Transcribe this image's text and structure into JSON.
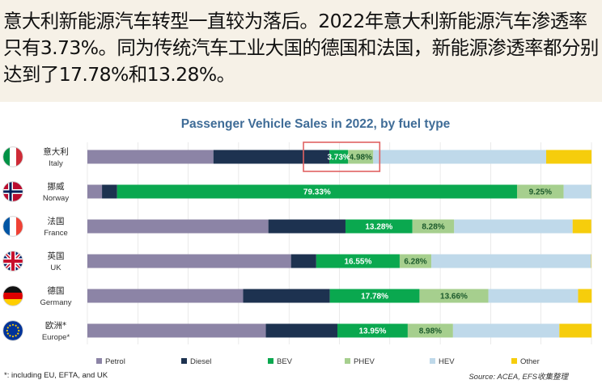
{
  "header": {
    "text": "意大利新能源汽车转型一直较为落后。2022年意大利新能源汽车渗透率只有3.73%。同为传统汽车工业大国的德国和法国，新能源渗透率都分别达到了17.78%和13.28%。"
  },
  "colors": {
    "Petrol": "#8c84a6",
    "Diesel": "#1d3250",
    "BEV": "#0aa84f",
    "PHEV": "#a6cf8e",
    "HEV": "#bfd9ea",
    "Other": "#f6cd0c",
    "highlight_box": "#e06262",
    "gridline": "#dddddd"
  },
  "chart_data": {
    "type": "bar",
    "orientation": "horizontal",
    "stacked": true,
    "title": "Passenger Vehicle Sales in 2022, by fuel type",
    "xlim": [
      0,
      100
    ],
    "unit": "%",
    "legend_position": "bottom",
    "segment_order": [
      "Petrol",
      "Diesel",
      "BEV",
      "PHEV",
      "HEV",
      "Other"
    ],
    "categories": [
      {
        "cn": "意大利",
        "en": "Italy",
        "flag": "italy-flag-icon"
      },
      {
        "cn": "挪威",
        "en": "Norway",
        "flag": "norway-flag-icon"
      },
      {
        "cn": "法国",
        "en": "France",
        "flag": "france-flag-icon"
      },
      {
        "cn": "英国",
        "en": "UK",
        "flag": "uk-flag-icon"
      },
      {
        "cn": "德国",
        "en": "Germany",
        "flag": "germany-flag-icon"
      },
      {
        "cn": "欧洲*",
        "en": "Europe*",
        "flag": "eu-flag-icon"
      }
    ],
    "series": [
      {
        "name": "Petrol",
        "values": [
          25.0,
          2.9,
          35.9,
          40.4,
          30.9,
          35.4
        ]
      },
      {
        "name": "Diesel",
        "values": [
          23.0,
          3.0,
          15.3,
          5.0,
          17.2,
          14.2
        ]
      },
      {
        "name": "BEV",
        "values": [
          3.73,
          79.33,
          13.28,
          16.55,
          17.78,
          13.95
        ]
      },
      {
        "name": "PHEV",
        "values": [
          4.98,
          9.25,
          8.28,
          6.28,
          13.66,
          8.98
        ]
      },
      {
        "name": "HEV",
        "values": [
          34.3,
          5.5,
          23.5,
          31.7,
          17.8,
          21.1
        ]
      },
      {
        "name": "Other",
        "values": [
          9.0,
          0.02,
          3.7,
          0.07,
          2.7,
          6.4
        ]
      }
    ],
    "data_labels": [
      {
        "category": "Italy",
        "series": "BEV",
        "text": "3.73%"
      },
      {
        "category": "Italy",
        "series": "PHEV",
        "text": "4.98%"
      },
      {
        "category": "Norway",
        "series": "BEV",
        "text": "79.33%"
      },
      {
        "category": "Norway",
        "series": "PHEV",
        "text": "9.25%"
      },
      {
        "category": "France",
        "series": "BEV",
        "text": "13.28%"
      },
      {
        "category": "France",
        "series": "PHEV",
        "text": "8.28%"
      },
      {
        "category": "UK",
        "series": "BEV",
        "text": "16.55%"
      },
      {
        "category": "UK",
        "series": "PHEV",
        "text": "6.28%"
      },
      {
        "category": "Germany",
        "series": "BEV",
        "text": "17.78%"
      },
      {
        "category": "Germany",
        "series": "PHEV",
        "text": "13.66%"
      },
      {
        "category": "Europe*",
        "series": "BEV",
        "text": "13.95%"
      },
      {
        "category": "Europe*",
        "series": "PHEV",
        "text": "8.98%"
      }
    ],
    "highlight": {
      "category": "Italy",
      "series": [
        "BEV",
        "PHEV"
      ]
    },
    "footnote": "*: including EU, EFTA, and UK",
    "source": "Source: ACEA, EFS收集整理"
  }
}
